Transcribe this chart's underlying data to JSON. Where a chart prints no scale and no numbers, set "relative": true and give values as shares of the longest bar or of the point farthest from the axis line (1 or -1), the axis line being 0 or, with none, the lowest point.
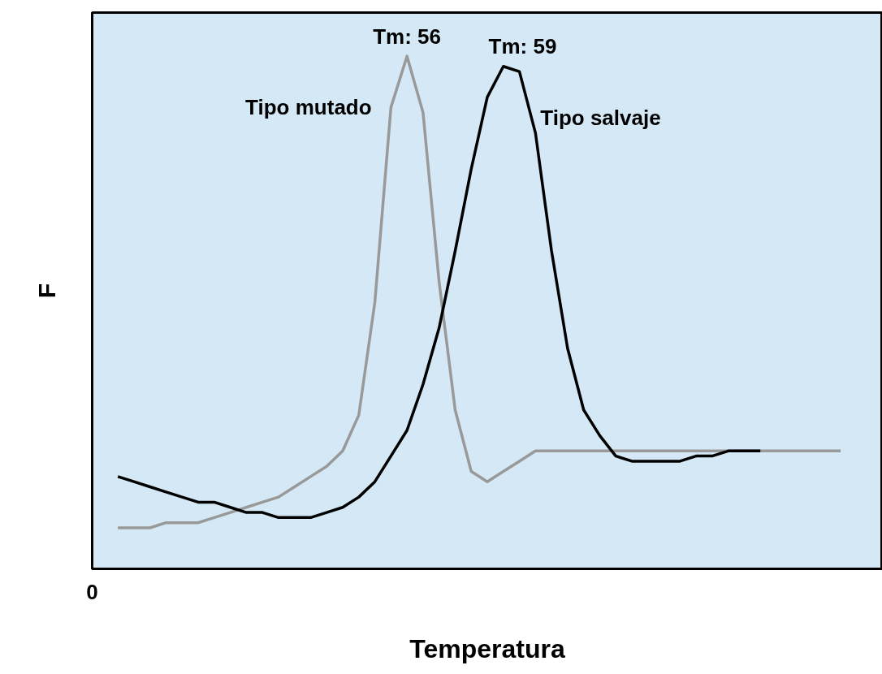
{
  "chart_data": {
    "type": "line",
    "relative": true,
    "xlabel": "Temperatura",
    "ylabel": "F",
    "categories": [
      null,
      null,
      null,
      null,
      null,
      null,
      null,
      null,
      null,
      null,
      null,
      null,
      null,
      null,
      null,
      null,
      null,
      null,
      null,
      null,
      null,
      null,
      null,
      null,
      null,
      null,
      null,
      null,
      null,
      null,
      null,
      null,
      null,
      null,
      null,
      null,
      null,
      null,
      null,
      null,
      null,
      null,
      null,
      null,
      null,
      null
    ],
    "series": [
      {
        "name": "Tipo mutado",
        "color": "#999999",
        "values": [
          0.08,
          0.08,
          0.08,
          0.09,
          0.09,
          0.09,
          0.1,
          0.11,
          0.12,
          0.13,
          0.14,
          0.16,
          0.18,
          0.2,
          0.23,
          0.3,
          0.52,
          0.9,
          1.0,
          0.89,
          0.56,
          0.31,
          0.19,
          0.17,
          0.19,
          0.21,
          0.23,
          0.23,
          0.23,
          0.23,
          0.23,
          0.23,
          0.23,
          0.23,
          0.23,
          0.23,
          0.23,
          0.23,
          0.23,
          0.23,
          0.23,
          0.23,
          0.23,
          0.23,
          0.23,
          0.23
        ]
      },
      {
        "name": "Tipo salvaje",
        "color": "#000000",
        "values": [
          0.18,
          0.17,
          0.16,
          0.15,
          0.14,
          0.13,
          0.13,
          0.12,
          0.11,
          0.11,
          0.1,
          0.1,
          0.1,
          0.11,
          0.12,
          0.14,
          0.17,
          0.22,
          0.27,
          0.36,
          0.47,
          0.62,
          0.78,
          0.92,
          0.98,
          0.97,
          0.85,
          0.62,
          0.43,
          0.31,
          0.26,
          0.22,
          0.21,
          0.21,
          0.21,
          0.21,
          0.22,
          0.22,
          0.23,
          0.23,
          0.23,
          null,
          null,
          null,
          null,
          null
        ]
      }
    ],
    "annotations": [
      "Tm: 56",
      "Tm: 59",
      "0"
    ],
    "legend": false,
    "marker": "none",
    "line_style": "solid"
  }
}
